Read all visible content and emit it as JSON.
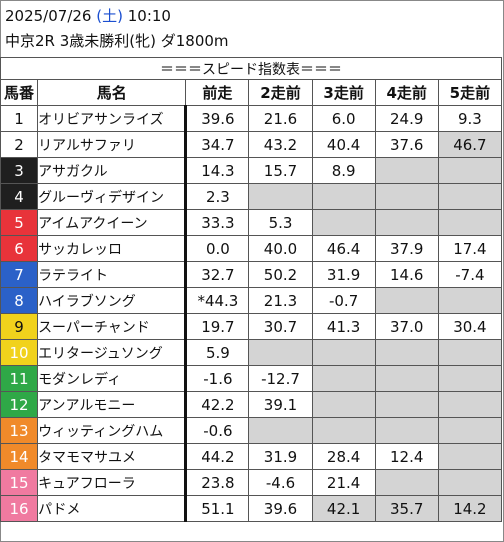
{
  "header": {
    "date": "2025/07/26",
    "dow": "(土)",
    "time": "10:10",
    "race": "中京2R 3歳未勝利(牝) ダ1800m"
  },
  "table": {
    "banner": "＝＝＝スピード指数表＝＝＝",
    "columns": [
      "馬番",
      "馬名",
      "前走",
      "2走前",
      "3走前",
      "4走前",
      "5走前"
    ],
    "rows": [
      {
        "no": "1",
        "name": "オリビアサンライズ",
        "v": [
          "39.6",
          "21.6",
          "6.0",
          "24.9",
          "9.3"
        ]
      },
      {
        "no": "2",
        "name": "リアルサファリ",
        "v": [
          "34.7",
          "43.2",
          "40.4",
          "37.6",
          "46.7"
        ]
      },
      {
        "no": "3",
        "name": "アサガクル",
        "v": [
          "14.3",
          "15.7",
          "8.9",
          "",
          ""
        ]
      },
      {
        "no": "4",
        "name": "グルーヴィデザイン",
        "v": [
          "2.3",
          "",
          "",
          "",
          ""
        ]
      },
      {
        "no": "5",
        "name": "アイムアクイーン",
        "v": [
          "33.3",
          "5.3",
          "",
          "",
          ""
        ]
      },
      {
        "no": "6",
        "name": "サッカレッロ",
        "v": [
          "0.0",
          "40.0",
          "46.4",
          "37.9",
          "17.4"
        ]
      },
      {
        "no": "7",
        "name": "ラテライト",
        "v": [
          "32.7",
          "50.2",
          "31.9",
          "14.6",
          "-7.4"
        ]
      },
      {
        "no": "8",
        "name": "ハイラブソング",
        "v": [
          "*44.3",
          "21.3",
          "-0.7",
          "",
          ""
        ]
      },
      {
        "no": "9",
        "name": "スーパーチャンド",
        "v": [
          "19.7",
          "30.7",
          "41.3",
          "37.0",
          "30.4"
        ]
      },
      {
        "no": "10",
        "name": "エリタージュソング",
        "v": [
          "5.9",
          "",
          "",
          "",
          ""
        ]
      },
      {
        "no": "11",
        "name": "モダンレディ",
        "v": [
          "-1.6",
          "-12.7",
          "",
          "",
          ""
        ]
      },
      {
        "no": "12",
        "name": "アンアルモニー",
        "v": [
          "42.2",
          "39.1",
          "",
          "",
          ""
        ]
      },
      {
        "no": "13",
        "name": "ウィッティングハム",
        "v": [
          "-0.6",
          "",
          "",
          "",
          ""
        ]
      },
      {
        "no": "14",
        "name": "タマモマサユメ",
        "v": [
          "44.2",
          "31.9",
          "28.4",
          "12.4",
          ""
        ]
      },
      {
        "no": "15",
        "name": "キュアフローラ",
        "v": [
          "23.8",
          "-4.6",
          "21.4",
          "",
          ""
        ]
      },
      {
        "no": "16",
        "name": "パドメ",
        "v": [
          "51.1",
          "39.6",
          "42.1",
          "35.7",
          "14.2"
        ]
      }
    ]
  }
}
